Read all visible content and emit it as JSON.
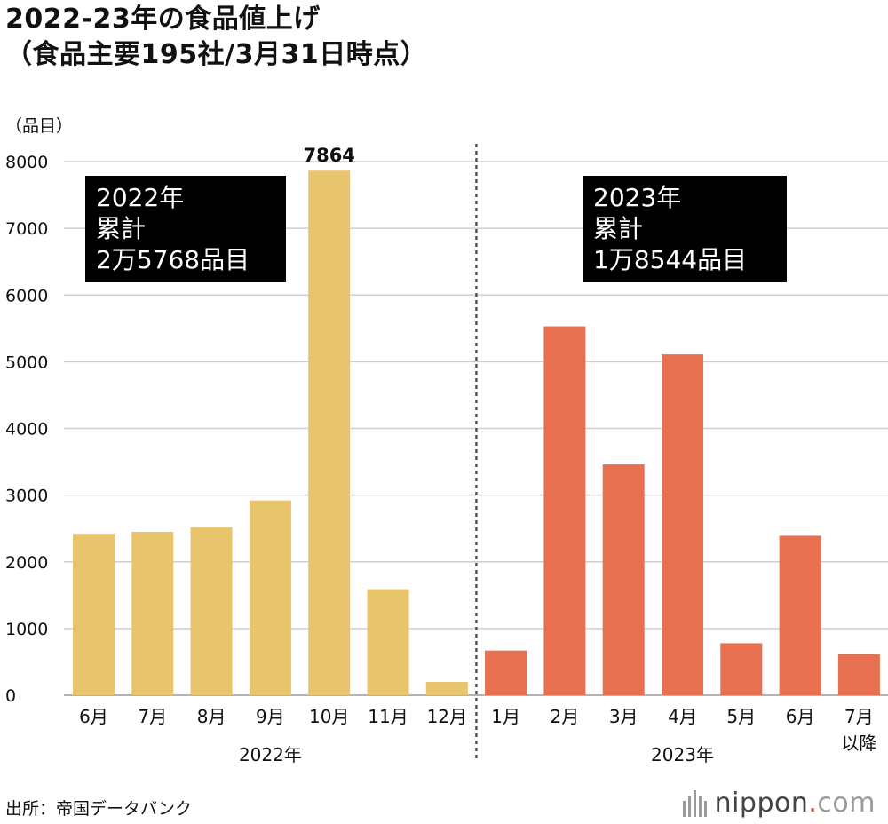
{
  "title_line1": "2022-23年の食品値上げ",
  "title_line2": "（食品主要195社/3月31日時点）",
  "source": "出所：帝国データバンク",
  "brand": {
    "name": "nippon",
    "dot": ".",
    "tld": "com"
  },
  "colors": {
    "y2022": "#e8c56d",
    "y2023": "#e6704f",
    "grid": "#cfcfcf",
    "annotation_bg": "#000000"
  },
  "chart_data": {
    "type": "bar",
    "ylabel": "（品目）",
    "ylim": [
      0,
      8000
    ],
    "yticks": [
      0,
      1000,
      2000,
      3000,
      4000,
      5000,
      6000,
      7000,
      8000
    ],
    "grid": true,
    "categories": [
      "6月",
      "7月",
      "8月",
      "9月",
      "10月",
      "11月",
      "12月",
      "1月",
      "2月",
      "3月",
      "4月",
      "5月",
      "6月",
      "7月\n以降"
    ],
    "groups": [
      {
        "year": "2022年",
        "start": 0,
        "count": 7
      },
      {
        "year": "2023年",
        "start": 7,
        "count": 7
      }
    ],
    "series": [
      {
        "values": [
          2420,
          2450,
          2520,
          2920,
          7864,
          1590,
          200,
          670,
          5530,
          3460,
          5110,
          780,
          2390,
          620
        ]
      }
    ],
    "data_labels": [
      {
        "index": 4,
        "text": "7864"
      }
    ],
    "annotations": [
      {
        "lines": [
          "2022年",
          "累計",
          "2万5768品目"
        ]
      },
      {
        "lines": [
          "2023年",
          "累計",
          "1万8544品目"
        ]
      }
    ]
  }
}
